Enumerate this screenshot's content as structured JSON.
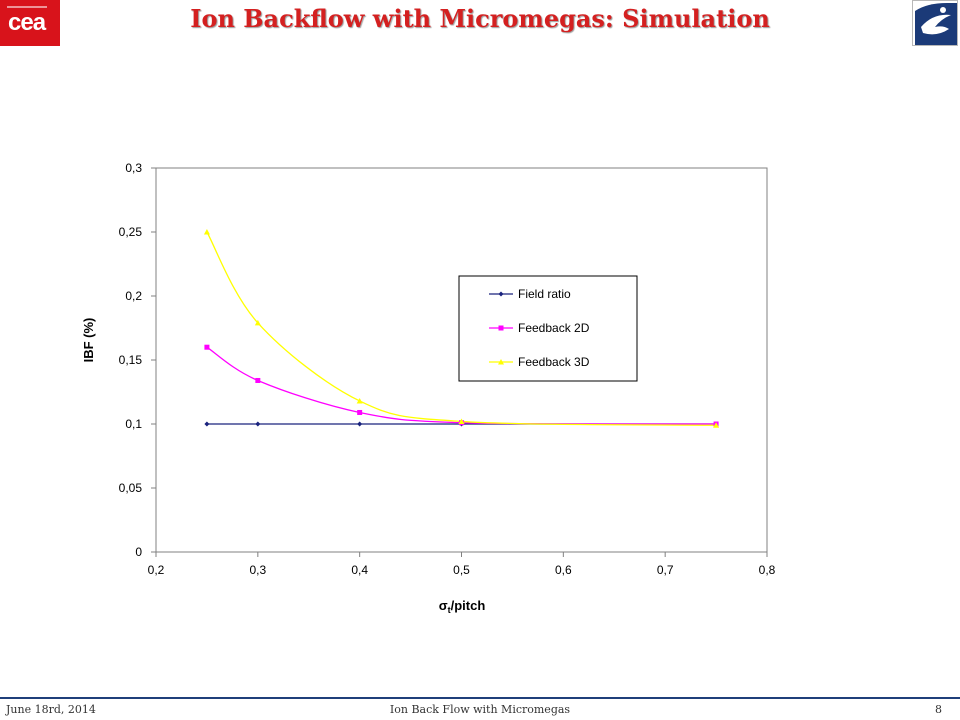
{
  "slide": {
    "title": "Ion Backflow with Micromegas: Simulation",
    "logo_left": "cea",
    "footer_date": "June 18rd, 2014",
    "footer_center": "Ion Back Flow with Micromegas",
    "footer_page": "8"
  },
  "colors": {
    "title": "#d42020",
    "logo_red": "#d8131b",
    "footer_rule": "#1f3f7a"
  },
  "chart_data": {
    "type": "line",
    "title": "",
    "xlabel_prefix": "σ",
    "xlabel_sub": "t",
    "xlabel_suffix": "/pitch",
    "ylabel": "IBF (%)",
    "xlim": [
      0.2,
      0.8
    ],
    "ylim": [
      0,
      0.3
    ],
    "x_ticks": [
      "0,2",
      "0,3",
      "0,4",
      "0,5",
      "0,6",
      "0,7",
      "0,8"
    ],
    "y_ticks": [
      "0",
      "0,05",
      "0,1",
      "0,15",
      "0,2",
      "0,25",
      "0,3"
    ],
    "grid": false,
    "legend_position": "center-right",
    "x": [
      0.25,
      0.3,
      0.4,
      0.5,
      0.75
    ],
    "series": [
      {
        "name": "Field ratio",
        "color": "#1a237e",
        "marker": "diamond",
        "values": [
          0.1,
          0.1,
          0.1,
          0.1,
          0.1
        ]
      },
      {
        "name": "Feedback 2D",
        "color": "#ff00ff",
        "marker": "square",
        "values": [
          0.16,
          0.134,
          0.109,
          0.101,
          0.1
        ]
      },
      {
        "name": "Feedback 3D",
        "color": "#ffff00",
        "marker": "triangle",
        "values": [
          0.25,
          0.179,
          0.118,
          0.102,
          0.099
        ]
      }
    ]
  }
}
